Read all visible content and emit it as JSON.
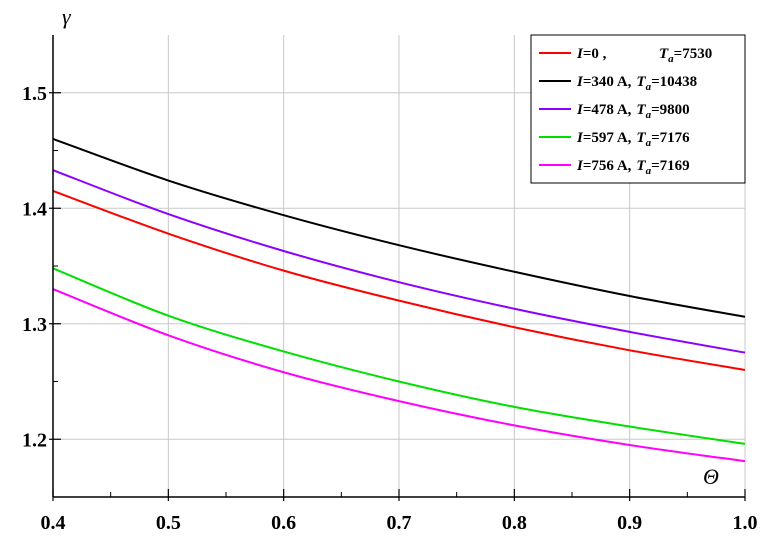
{
  "chart_data": {
    "type": "line",
    "xlabel": "Θ",
    "ylabel": "γ",
    "xlim": [
      0.4,
      1.0
    ],
    "ylim": [
      1.15,
      1.55
    ],
    "x_ticks": [
      "0.4",
      "0.5",
      "0.6",
      "0.7",
      "0.8",
      "0.9",
      "1.0"
    ],
    "y_ticks": [
      "1.2",
      "1.3",
      "1.4",
      "1.5"
    ],
    "grid": true,
    "legend_position": "top-right",
    "series": [
      {
        "name": "I=0 ,        Ta=7530",
        "label_parts": {
          "current": "I",
          "eq1": "=0 ,",
          "temp": "T",
          "sub": "a",
          "value": "=7530"
        },
        "color": "#ff0000",
        "x": [
          0.4,
          0.5,
          0.6,
          0.7,
          0.8,
          0.9,
          1.0
        ],
        "values": [
          1.415,
          1.378,
          1.346,
          1.32,
          1.297,
          1.277,
          1.26
        ]
      },
      {
        "name": "I=340 A, Ta=10438",
        "label_parts": {
          "current": "I",
          "eq1": "=340 A,",
          "temp": "T",
          "sub": "a",
          "value": "=10438"
        },
        "color": "#000000",
        "x": [
          0.4,
          0.5,
          0.6,
          0.7,
          0.8,
          0.9,
          1.0
        ],
        "values": [
          1.46,
          1.424,
          1.394,
          1.368,
          1.345,
          1.324,
          1.306
        ]
      },
      {
        "name": "I=478 A, Ta=9800",
        "label_parts": {
          "current": "I",
          "eq1": "=478 A,",
          "temp": "T",
          "sub": "a",
          "value": "=9800"
        },
        "color": "#8b00ff",
        "x": [
          0.4,
          0.5,
          0.6,
          0.7,
          0.8,
          0.9,
          1.0
        ],
        "values": [
          1.433,
          1.395,
          1.363,
          1.336,
          1.313,
          1.293,
          1.275
        ]
      },
      {
        "name": "I=597 A, Ta=7176",
        "label_parts": {
          "current": "I",
          "eq1": "=597 A,",
          "temp": "T",
          "sub": "a",
          "value": "=7176"
        },
        "color": "#00e000",
        "x": [
          0.4,
          0.5,
          0.6,
          0.7,
          0.8,
          0.9,
          1.0
        ],
        "values": [
          1.348,
          1.307,
          1.276,
          1.25,
          1.228,
          1.211,
          1.196
        ]
      },
      {
        "name": "I=756 A, Ta=7169",
        "label_parts": {
          "current": "I",
          "eq1": "=756 A,",
          "temp": "T",
          "sub": "a",
          "value": "=7169"
        },
        "color": "#ff00ff",
        "x": [
          0.4,
          0.5,
          0.6,
          0.7,
          0.8,
          0.9,
          1.0
        ],
        "values": [
          1.33,
          1.29,
          1.258,
          1.233,
          1.212,
          1.195,
          1.181
        ]
      }
    ]
  }
}
